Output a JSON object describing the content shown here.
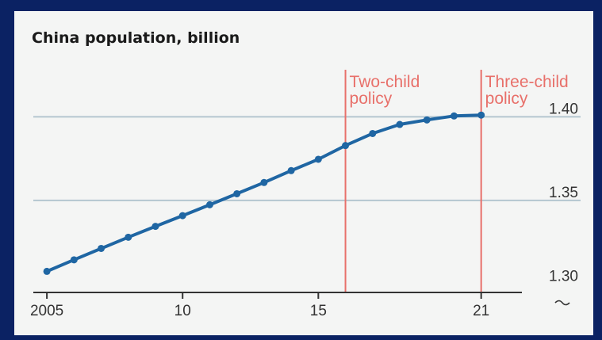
{
  "chart_data": {
    "type": "line",
    "title": "China population, billion",
    "xlabel": "",
    "ylabel": "",
    "x": [
      2005,
      2006,
      2007,
      2008,
      2009,
      2010,
      2011,
      2012,
      2013,
      2014,
      2015,
      2016,
      2017,
      2018,
      2019,
      2020,
      2021
    ],
    "series": [
      {
        "values": [
          1.3076,
          1.3145,
          1.3213,
          1.328,
          1.3345,
          1.3409,
          1.3474,
          1.354,
          1.3607,
          1.3678,
          1.3746,
          1.3828,
          1.39,
          1.3954,
          1.3981,
          1.4005,
          1.401
        ]
      }
    ],
    "xlim": [
      2004.5,
      2022.5
    ],
    "ylim": [
      1.295,
      1.43
    ],
    "x_ticks": [
      {
        "value": 2005,
        "label": "2005"
      },
      {
        "value": 2010,
        "label": "10"
      },
      {
        "value": 2015,
        "label": "15"
      },
      {
        "value": 2021,
        "label": "21"
      }
    ],
    "y_ticks": [
      {
        "value": 1.3,
        "label": "1.30"
      },
      {
        "value": 1.35,
        "label": "1.35"
      },
      {
        "value": 1.4,
        "label": "1.40"
      }
    ],
    "annotations": [
      {
        "x": 2016,
        "lines": [
          "Two-child",
          "policy"
        ]
      },
      {
        "x": 2021,
        "lines": [
          "Three-child",
          "policy"
        ]
      }
    ],
    "grid": true,
    "colors": {
      "line": "#1f66a3",
      "grid": "#b5c6d0",
      "policy": "#e8706a",
      "axis": "#333333"
    }
  }
}
